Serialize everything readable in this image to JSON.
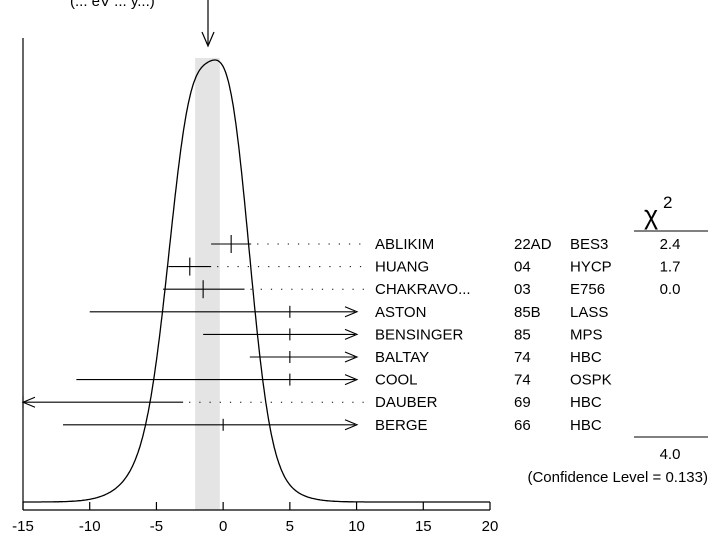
{
  "chart_data": {
    "type": "ideogram",
    "top_label_fragment": "(... eV    ... y...)",
    "average": -1.45,
    "error_band": [
      -2.1,
      -0.25
    ],
    "x_ticks": [
      -15,
      -10,
      -5,
      0,
      5,
      10,
      15,
      20
    ],
    "xlim": [
      -15,
      20
    ],
    "chi2_header": "χ",
    "chi2_exponent": "2",
    "measurements": [
      {
        "author": "ABLIKIM",
        "year": "22AD",
        "tech": "BES3",
        "chi2": "2.4",
        "value": 0.6,
        "lo": -0.9,
        "hi": 2.1,
        "used": true
      },
      {
        "author": "HUANG",
        "year": "04",
        "tech": "HYCP",
        "chi2": "1.7",
        "value": -2.5,
        "lo": -4.1,
        "hi": -0.9,
        "used": true
      },
      {
        "author": "CHAKRAVO...",
        "year": "03",
        "tech": "E756",
        "chi2": "0.0",
        "value": -1.5,
        "lo": -4.5,
        "hi": 1.6,
        "used": true
      },
      {
        "author": "ASTON",
        "year": "85B",
        "tech": "LASS",
        "chi2": "",
        "value": 5.0,
        "lo": -10.0,
        "hi": 20.0,
        "used": false
      },
      {
        "author": "BENSINGER",
        "year": "85",
        "tech": "MPS",
        "chi2": "",
        "value": 5.0,
        "lo": -1.5,
        "hi": 20.0,
        "used": false
      },
      {
        "author": "BALTAY",
        "year": "74",
        "tech": "HBC",
        "chi2": "",
        "value": 5.0,
        "lo": 2.0,
        "hi": 20.0,
        "used": false
      },
      {
        "author": "COOL",
        "year": "74",
        "tech": "OSPK",
        "chi2": "",
        "value": 5.0,
        "lo": -11.0,
        "hi": 20.0,
        "used": false
      },
      {
        "author": "DAUBER",
        "year": "69",
        "tech": "HBC",
        "chi2": "",
        "value": -15.0,
        "lo": -15.0,
        "hi": -3.0,
        "used": false
      },
      {
        "author": "BERGE",
        "year": "66",
        "tech": "HBC",
        "chi2": "",
        "value": 0.0,
        "lo": -12.0,
        "hi": 20.0,
        "used": false
      }
    ],
    "chi2_total": "4.0",
    "confidence_text": "(Confidence Level = 0.133)"
  }
}
